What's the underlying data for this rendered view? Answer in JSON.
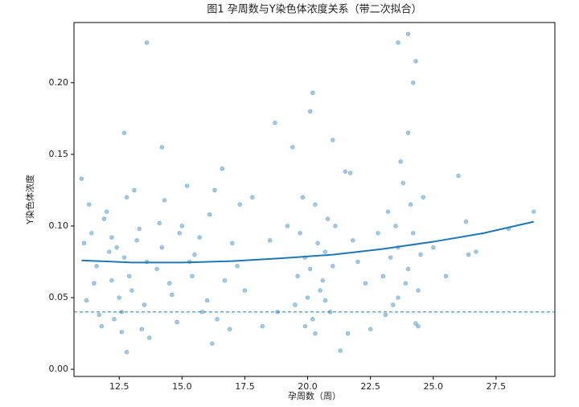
{
  "chart_data": {
    "type": "scatter",
    "title": "图1 孕周数与Y染色体浓度关系（带二次拟合）",
    "x_label": "孕周数（周）",
    "y_label": "Y染色体浓度",
    "xlim": [
      10.7,
      29.84
    ],
    "ylim": [
      -0.005,
      0.242
    ],
    "xticks": [
      12.5,
      {
        "value": 15,
        "label": "15.0"
      },
      17.5,
      {
        "value": 20,
        "label": "20.0"
      },
      22.5,
      {
        "value": 25,
        "label": "25.0"
      },
      27.5
    ],
    "yticks": [
      {
        "value": 0,
        "label": "0.00"
      },
      0.05,
      {
        "value": 0.1,
        "label": "0.10"
      },
      0.15,
      {
        "value": 0.2,
        "label": "0.20"
      }
    ],
    "grid": false,
    "series": [
      {
        "type": "scatter",
        "color": "#1f77b4",
        "x": [
          11.0,
          11.2,
          11.4,
          11.6,
          11.8,
          12.0,
          12.2,
          12.4,
          12.6,
          12.8,
          13.0,
          13.2,
          13.4,
          13.6,
          11.1,
          11.5,
          11.9,
          12.3,
          12.7,
          13.1,
          13.5,
          11.3,
          11.7,
          12.1,
          12.5,
          12.9,
          13.3,
          13.7,
          12.2,
          12.6,
          14.0,
          14.3,
          14.6,
          14.9,
          15.2,
          15.5,
          15.8,
          16.1,
          16.4,
          16.7,
          17.0,
          17.3,
          14.2,
          14.8,
          15.4,
          16.0,
          16.6,
          17.2,
          15.0,
          16.3,
          14.5,
          15.7,
          16.9,
          14.1,
          15.3,
          16.2,
          17.5,
          17.8,
          18.2,
          18.5,
          19.5,
          19.7,
          19.9,
          20.1,
          20.3,
          20.5,
          20.7,
          20.9,
          21.1,
          19.6,
          19.8,
          20.0,
          20.2,
          20.4,
          20.6,
          20.8,
          21.0,
          19.9,
          20.3,
          20.7,
          23.0,
          23.2,
          23.4,
          23.6,
          23.8,
          24.0,
          24.2,
          24.4,
          24.6,
          23.1,
          23.5,
          23.9,
          24.3,
          23.3,
          23.7,
          24.1,
          24.5,
          23.6,
          24.0,
          24.4,
          21.8,
          22.3,
          22.8,
          25.0,
          25.5,
          18.8,
          19.2,
          21.6,
          22.0,
          22.5,
          13.6,
          23.6,
          24.0,
          24.3,
          24.2,
          20.2,
          20.1,
          18.7,
          12.7,
          14.2,
          26.0,
          28.0,
          29.0,
          26.3,
          26.4,
          26.7,
          21.5,
          21.7,
          21.0,
          19.4,
          21.3,
          12.8
        ],
        "values": [
          0.133,
          0.048,
          0.095,
          0.072,
          0.03,
          0.11,
          0.062,
          0.085,
          0.04,
          0.12,
          0.055,
          0.09,
          0.028,
          0.075,
          0.088,
          0.06,
          0.105,
          0.035,
          0.078,
          0.125,
          0.045,
          0.115,
          0.038,
          0.082,
          0.05,
          0.065,
          0.098,
          0.022,
          0.092,
          0.026,
          0.07,
          0.118,
          0.052,
          0.095,
          0.128,
          0.08,
          0.04,
          0.108,
          0.035,
          0.062,
          0.088,
          0.115,
          0.085,
          0.033,
          0.065,
          0.048,
          0.14,
          0.072,
          0.1,
          0.125,
          0.06,
          0.092,
          0.028,
          0.102,
          0.075,
          0.018,
          0.055,
          0.12,
          0.03,
          0.09,
          0.045,
          0.095,
          0.03,
          0.07,
          0.115,
          0.055,
          0.082,
          0.04,
          0.1,
          0.065,
          0.12,
          0.05,
          0.035,
          0.088,
          0.062,
          0.105,
          0.072,
          0.078,
          0.025,
          0.048,
          0.065,
          0.11,
          0.045,
          0.085,
          0.13,
          0.07,
          0.095,
          0.055,
          0.12,
          0.038,
          0.1,
          0.06,
          0.032,
          0.078,
          0.145,
          0.115,
          0.08,
          0.05,
          0.165,
          0.03,
          0.09,
          0.06,
          0.095,
          0.085,
          0.065,
          0.04,
          0.1,
          0.025,
          0.075,
          0.028,
          0.228,
          0.228,
          0.234,
          0.215,
          0.2,
          0.193,
          0.18,
          0.172,
          0.165,
          0.155,
          0.135,
          0.098,
          0.11,
          0.103,
          0.08,
          0.082,
          0.138,
          0.137,
          0.16,
          0.155,
          0.013,
          0.012
        ]
      },
      {
        "type": "line",
        "color": "#1f77b4",
        "x": [
          11,
          13,
          15,
          17,
          19,
          21,
          23,
          25,
          27,
          29
        ],
        "values": [
          0.076,
          0.0745,
          0.0745,
          0.0755,
          0.0775,
          0.08,
          0.084,
          0.089,
          0.095,
          0.103
        ]
      }
    ],
    "hline": {
      "value": 0.04,
      "color": "#1f77b4",
      "dashed": true
    }
  }
}
